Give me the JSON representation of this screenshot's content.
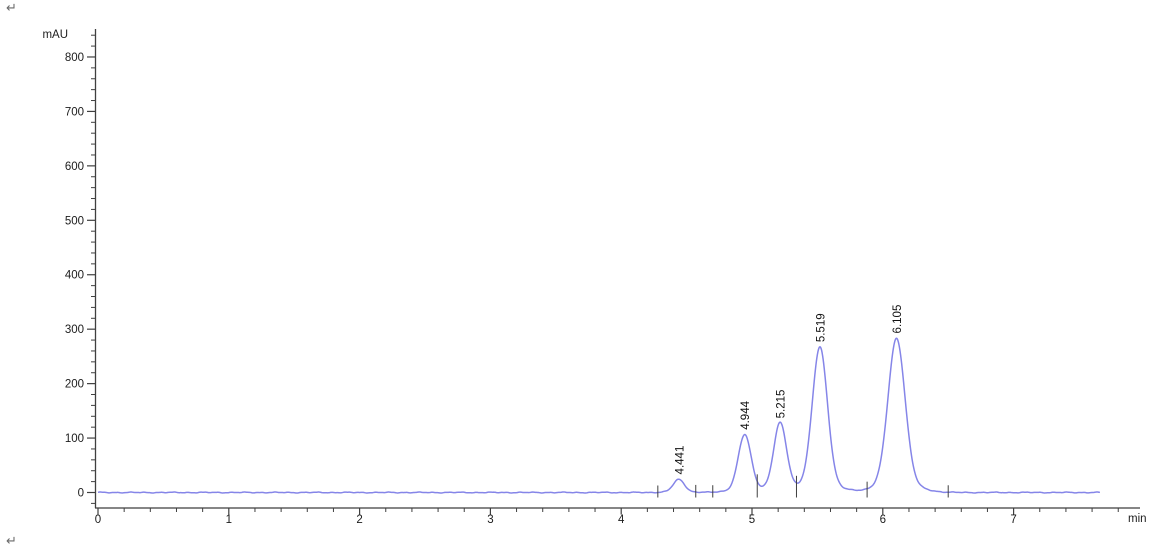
{
  "decorations": {
    "return_mark": "↵"
  },
  "chart_data": {
    "type": "line",
    "subtype": "chromatogram",
    "title": "",
    "ylabel": "mAU",
    "xlabel": "min",
    "y_axis": {
      "min": 0,
      "max": 800,
      "major_step": 100,
      "minor_step": 20,
      "tick_labels": [
        "0",
        "100",
        "200",
        "300",
        "400",
        "500",
        "600",
        "700",
        "800"
      ],
      "grid": false
    },
    "x_axis": {
      "min": 0,
      "max": 7.8,
      "major_step": 1,
      "minor_step": 0.2,
      "tick_labels": [
        "0",
        "1",
        "2",
        "3",
        "4",
        "5",
        "6",
        "7"
      ],
      "grid": false
    },
    "legend": null,
    "baseline_mAU": 0,
    "trace_start_min": 0,
    "trace_end_min": 7.66,
    "peaks": [
      {
        "rt_min": 4.441,
        "label": "4.441",
        "height_mAU": 24,
        "sigma_min": 0.042
      },
      {
        "rt_min": 4.944,
        "label": "4.944",
        "height_mAU": 106,
        "sigma_min": 0.048
      },
      {
        "rt_min": 5.215,
        "label": "5.215",
        "height_mAU": 127,
        "sigma_min": 0.048
      },
      {
        "rt_min": 5.519,
        "label": "5.519",
        "height_mAU": 267,
        "sigma_min": 0.057
      },
      {
        "rt_min": 6.105,
        "label": "6.105",
        "height_mAU": 283,
        "sigma_min": 0.064
      }
    ],
    "integration_marks_min": [
      4.28,
      4.57,
      4.7,
      5.04,
      5.34,
      5.88,
      6.5
    ],
    "colors": {
      "trace": "#8585e8",
      "axis": "#3f3f3f",
      "tick_label": "#1c1c1c",
      "peak_label": "#111111"
    }
  }
}
